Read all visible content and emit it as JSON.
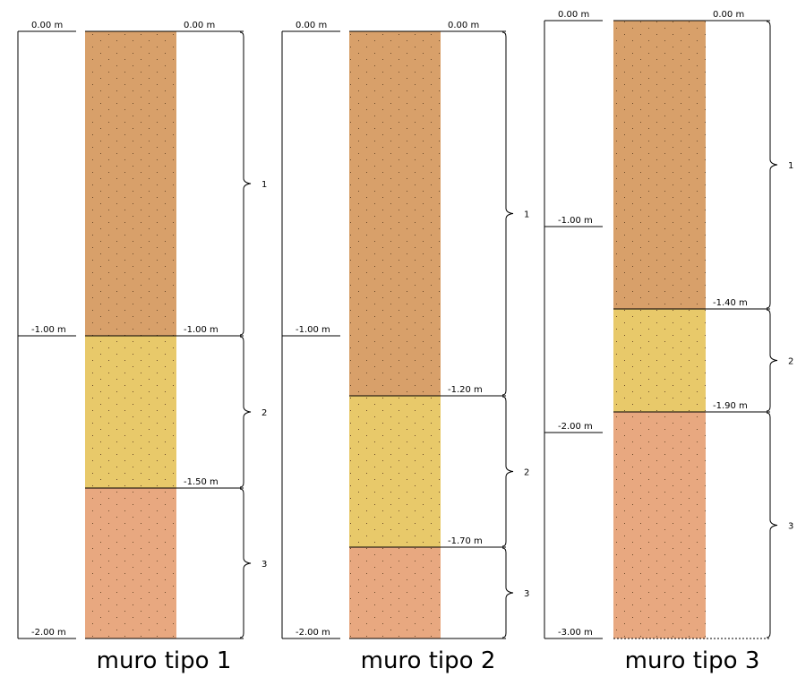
{
  "columns": [
    {
      "title": "muro tipo 1",
      "scale": [
        "0.00 m",
        "-1.00 m",
        "-2.00 m"
      ],
      "depths": [
        "0.00 m",
        "-1.00 m",
        "-1.50 m"
      ],
      "layers": [
        "1",
        "2",
        "3"
      ]
    },
    {
      "title": "muro tipo 2",
      "scale": [
        "0.00 m",
        "-1.00 m",
        "-2.00 m"
      ],
      "depths": [
        "0.00 m",
        "-1.20 m",
        "-1.70 m"
      ],
      "layers": [
        "1",
        "2",
        "3"
      ]
    },
    {
      "title": "muro tipo 3",
      "scale": [
        "0.00 m",
        "-1.00 m",
        "-2.00 m",
        "-3.00 m"
      ],
      "depths": [
        "0.00 m",
        "-1.40 m",
        "-1.90 m"
      ],
      "layers": [
        "1",
        "2",
        "3"
      ]
    }
  ]
}
